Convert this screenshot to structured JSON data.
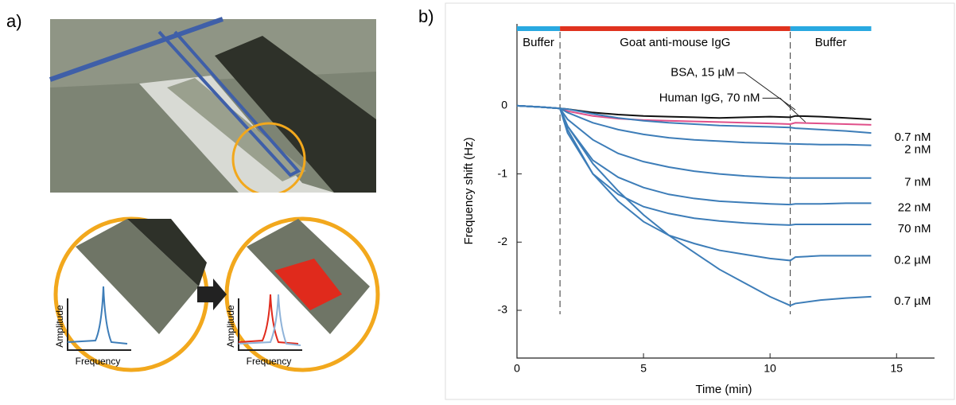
{
  "panel_labels": [
    "a)",
    "b)"
  ],
  "illustration": {
    "y_axis_labels": [
      "Amplitude",
      "Amplitude"
    ],
    "x_axis_labels": [
      "Frequency",
      "Frequency"
    ]
  },
  "chart_data": {
    "type": "line",
    "x_label": "Time (min)",
    "y_label": "Frequency shift (Hz)",
    "xlim": [
      0,
      16.5
    ],
    "ylim": [
      -3.7,
      1.2
    ],
    "xticks": [
      0,
      5,
      10,
      15
    ],
    "yticks": [
      0,
      -1,
      -2,
      -3
    ],
    "phases": [
      {
        "label": "Buffer",
        "start": 0,
        "end": 1.7,
        "color": "#29a9e1"
      },
      {
        "label": "Goat anti-mouse IgG",
        "start": 1.7,
        "end": 10.8,
        "color": "#e0321e"
      },
      {
        "label": "Buffer",
        "start": 10.8,
        "end": 14,
        "color": "#29a9e1"
      }
    ],
    "x": [
      0,
      1,
      1.7,
      2,
      3,
      4,
      5,
      6,
      7,
      8,
      9,
      10,
      10.8,
      11,
      12,
      13,
      14
    ],
    "series": [
      {
        "name": "BSA, 15 µM",
        "color": "#111111",
        "values": [
          0,
          -0.02,
          -0.04,
          -0.05,
          -0.1,
          -0.13,
          -0.15,
          -0.16,
          -0.17,
          -0.18,
          -0.17,
          -0.16,
          -0.17,
          -0.15,
          -0.16,
          -0.18,
          -0.2
        ]
      },
      {
        "name": "Human IgG, 70 nM",
        "color": "#e0508a",
        "values": [
          0,
          -0.02,
          -0.04,
          -0.08,
          -0.15,
          -0.19,
          -0.21,
          -0.22,
          -0.23,
          -0.24,
          -0.25,
          -0.26,
          -0.27,
          -0.25,
          -0.26,
          -0.27,
          -0.28
        ]
      },
      {
        "name": "0.7 nM",
        "color": "#3d7db8",
        "values": [
          0,
          -0.02,
          -0.04,
          -0.05,
          -0.12,
          -0.18,
          -0.22,
          -0.25,
          -0.27,
          -0.29,
          -0.3,
          -0.31,
          -0.32,
          -0.33,
          -0.35,
          -0.37,
          -0.4
        ]
      },
      {
        "name": "2 nM",
        "color": "#3d7db8",
        "values": [
          0,
          -0.02,
          -0.04,
          -0.1,
          -0.25,
          -0.35,
          -0.42,
          -0.47,
          -0.5,
          -0.52,
          -0.54,
          -0.55,
          -0.56,
          -0.56,
          -0.57,
          -0.57,
          -0.58
        ]
      },
      {
        "name": "7 nM",
        "color": "#3d7db8",
        "values": [
          0,
          -0.02,
          -0.04,
          -0.2,
          -0.5,
          -0.7,
          -0.82,
          -0.9,
          -0.96,
          -1.0,
          -1.03,
          -1.05,
          -1.06,
          -1.06,
          -1.06,
          -1.06,
          -1.06
        ]
      },
      {
        "name": "22 nM",
        "color": "#3d7db8",
        "values": [
          0,
          -0.02,
          -0.04,
          -0.3,
          -0.8,
          -1.05,
          -1.2,
          -1.3,
          -1.36,
          -1.4,
          -1.42,
          -1.44,
          -1.45,
          -1.44,
          -1.44,
          -1.43,
          -1.43
        ]
      },
      {
        "name": "70 nM",
        "color": "#3d7db8",
        "values": [
          0,
          -0.02,
          -0.04,
          -0.4,
          -1.0,
          -1.3,
          -1.48,
          -1.58,
          -1.65,
          -1.69,
          -1.72,
          -1.74,
          -1.75,
          -1.74,
          -1.74,
          -1.74,
          -1.74
        ]
      },
      {
        "name": "0.2 µM",
        "color": "#3d7db8",
        "values": [
          0,
          -0.02,
          -0.04,
          -0.35,
          -1.0,
          -1.4,
          -1.7,
          -1.9,
          -2.02,
          -2.12,
          -2.18,
          -2.24,
          -2.27,
          -2.22,
          -2.2,
          -2.2,
          -2.2
        ]
      },
      {
        "name": "0.7 µM",
        "color": "#3d7db8",
        "values": [
          0,
          -0.02,
          -0.04,
          -0.3,
          -0.85,
          -1.25,
          -1.6,
          -1.9,
          -2.15,
          -2.4,
          -2.6,
          -2.8,
          -2.93,
          -2.9,
          -2.85,
          -2.82,
          -2.8
        ]
      }
    ]
  }
}
